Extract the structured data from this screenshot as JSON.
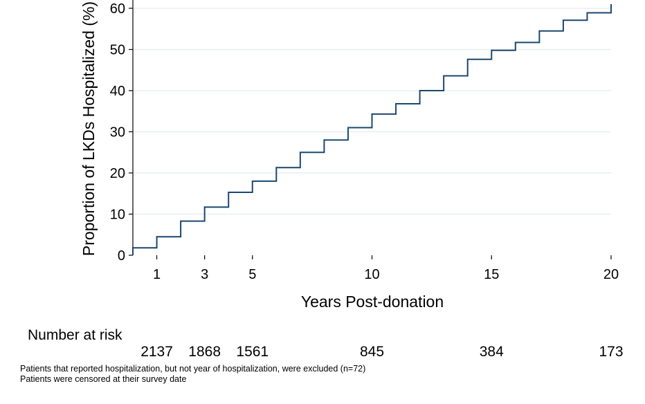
{
  "chart_data": {
    "type": "line",
    "title": "",
    "xlabel": "Years Post-donation",
    "ylabel": "Proportion of LKDs Hospitalized (%)",
    "xlim": [
      0,
      20
    ],
    "ylim": [
      0,
      60
    ],
    "xticks": [
      1,
      3,
      5,
      10,
      15,
      20
    ],
    "yticks": [
      0,
      10,
      20,
      30,
      40,
      50,
      60
    ],
    "grid": "horizontal",
    "line_color": "#1a476f",
    "series": [
      {
        "name": "",
        "step": true,
        "x": [
          0,
          1,
          2,
          3,
          4,
          5,
          6,
          7,
          8,
          9,
          10,
          11,
          12,
          13,
          14,
          15,
          16,
          17,
          18,
          19,
          20
        ],
        "y": [
          1.8,
          4.5,
          8.3,
          11.7,
          15.3,
          18.0,
          21.3,
          25.0,
          28.0,
          31.0,
          34.3,
          36.8,
          40.0,
          43.6,
          47.6,
          49.8,
          51.7,
          54.5,
          57.1,
          58.9,
          61.0
        ]
      }
    ]
  },
  "risk_table": {
    "title": "Number at risk",
    "items": [
      {
        "year": 1,
        "value": "2137"
      },
      {
        "year": 3,
        "value": "1868"
      },
      {
        "year": 5,
        "value": "1561"
      },
      {
        "year": 10,
        "value": "845"
      },
      {
        "year": 15,
        "value": "384"
      },
      {
        "year": 20,
        "value": "173"
      }
    ]
  },
  "notes": [
    "Patients that reported hospitalization, but not year of hospitalization, were excluded (n=72)",
    "Patients were censored at their survey date"
  ]
}
